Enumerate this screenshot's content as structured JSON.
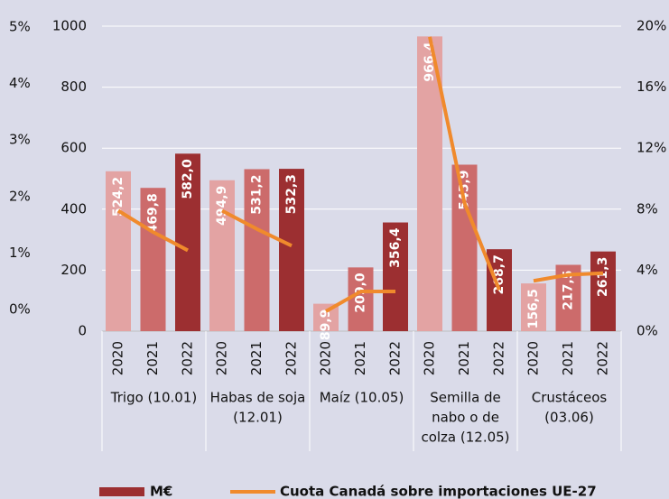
{
  "chart_data": {
    "type": "bar",
    "years": [
      "2020",
      "2021",
      "2022"
    ],
    "year_colors": [
      "#e3a3a3",
      "#cc6b6b",
      "#9c2f31"
    ],
    "line_color": "#f08a2c",
    "groups": [
      {
        "label": [
          "Trigo (10.01)"
        ],
        "values": [
          524.2,
          469.8,
          582.0
        ],
        "value_labels": [
          "524,2",
          "469,8",
          "582,0"
        ],
        "share": [
          7.9,
          6.5,
          5.3
        ]
      },
      {
        "label": [
          "Habas de soja",
          "(12.01)"
        ],
        "values": [
          494.9,
          531.2,
          532.3
        ],
        "value_labels": [
          "494,9",
          "531,2",
          "532,3"
        ],
        "share": [
          7.9,
          6.7,
          5.6
        ]
      },
      {
        "label": [
          "Maíz (10.05)"
        ],
        "values": [
          89.9,
          209.0,
          356.4
        ],
        "value_labels": [
          "89,9",
          "209,0",
          "356,4"
        ],
        "share": [
          1.3,
          2.6,
          2.6
        ]
      },
      {
        "label": [
          "Semilla de",
          "nabo o de",
          "colza (12.05)"
        ],
        "values": [
          966.4,
          545.9,
          268.7
        ],
        "value_labels": [
          "966,4",
          "545,9",
          "268,7"
        ],
        "share": [
          19.3,
          8.4,
          2.7
        ]
      },
      {
        "label": [
          "Crustáceos",
          "(03.06)"
        ],
        "values": [
          156.5,
          217.5,
          261.3
        ],
        "value_labels": [
          "156,5",
          "217,5",
          "261,3"
        ],
        "share": [
          3.3,
          3.7,
          3.8
        ]
      }
    ],
    "ylim": [
      0,
      1000
    ],
    "yticks": [
      0,
      200,
      400,
      600,
      800,
      1000
    ],
    "y2lim": [
      0,
      20
    ],
    "y2ticks": [
      {
        "value": 0,
        "label": "0%"
      },
      {
        "value": 4,
        "label": "4%"
      },
      {
        "value": 8,
        "label": "8%"
      },
      {
        "value": 12,
        "label": "12%"
      },
      {
        "value": 16,
        "label": "16%"
      },
      {
        "value": 20,
        "label": "20%"
      }
    ],
    "y3lim": [
      0,
      5
    ],
    "y3ticks": [
      {
        "value": 0,
        "label": "0%"
      },
      {
        "value": 1,
        "label": "1%"
      },
      {
        "value": 2,
        "label": "2%"
      },
      {
        "value": 3,
        "label": "3%"
      },
      {
        "value": 4,
        "label": "4%"
      },
      {
        "value": 5,
        "label": "5%"
      }
    ],
    "grid": true,
    "legend": [
      {
        "name": "M€",
        "color": "#9c2f31"
      },
      {
        "name": "Cuota Canadá sobre importaciones UE-27",
        "color": "#f08a2c"
      }
    ]
  }
}
